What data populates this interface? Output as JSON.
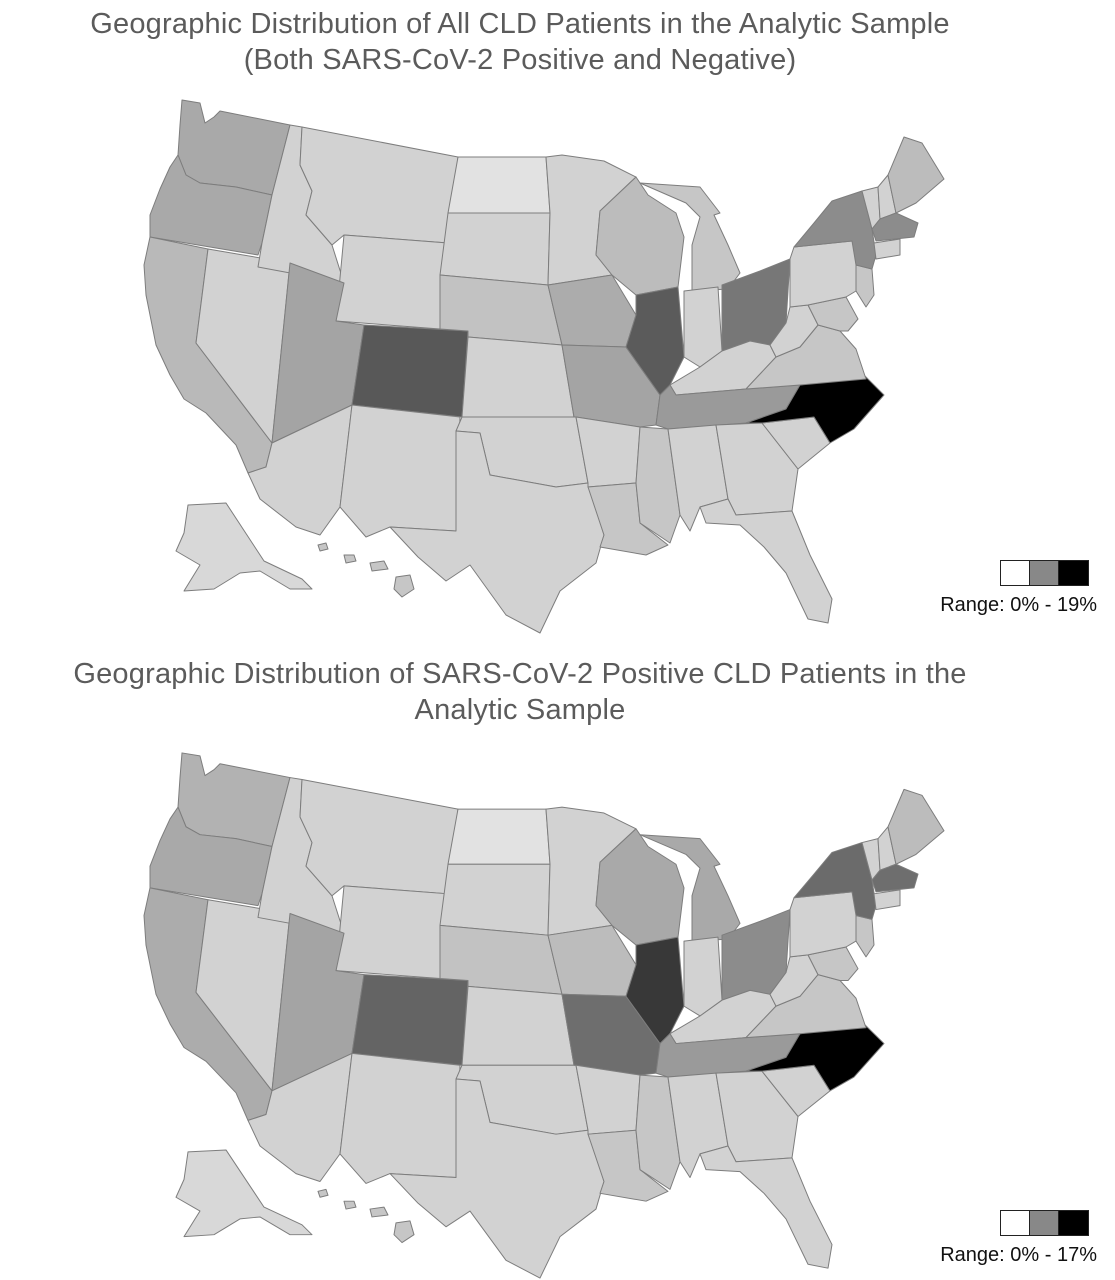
{
  "maps": [
    {
      "title_lines": [
        "Geographic Distribution of All CLD Patients in the Analytic Sample",
        "(Both SARS-CoV-2 Positive and Negative)"
      ],
      "legend": {
        "label": "Range: 0% - 19%",
        "colors": [
          "#ffffff",
          "#888888",
          "#000000"
        ]
      },
      "state_shades": {
        "WA": "#a9a9a9",
        "OR": "#a9a9a9",
        "CA": "#b9b9b9",
        "NV": "#d2d2d2",
        "ID": "#d2d2d2",
        "MT": "#d2d2d2",
        "WY": "#d2d2d2",
        "UT": "#a4a4a4",
        "CO": "#585858",
        "AZ": "#d2d2d2",
        "NM": "#d2d2d2",
        "ND": "#e2e2e2",
        "SD": "#d2d2d2",
        "NE": "#c2c2c2",
        "KS": "#d2d2d2",
        "OK": "#d2d2d2",
        "TX": "#d2d2d2",
        "MN": "#d2d2d2",
        "IA": "#acacac",
        "MO": "#a4a4a4",
        "AR": "#d2d2d2",
        "LA": "#c6c6c6",
        "WI": "#bcbcbc",
        "IL": "#5b5b5b",
        "MI": "#c6c6c6",
        "IN": "#d2d2d2",
        "OH": "#777777",
        "KY": "#d2d2d2",
        "TN": "#9a9a9a",
        "MS": "#c6c6c6",
        "AL": "#d2d2d2",
        "GA": "#d2d2d2",
        "FL": "#d2d2d2",
        "SC": "#d2d2d2",
        "NC": "#000000",
        "VA": "#c6c6c6",
        "WV": "#d2d2d2",
        "PA": "#d2d2d2",
        "NY": "#8c8c8c",
        "VT": "#d2d2d2",
        "NH": "#d2d2d2",
        "ME": "#bcbcbc",
        "MA": "#8c8c8c",
        "CT": "#d2d2d2",
        "NJ": "#c6c6c6",
        "MD": "#c6c6c6",
        "AK": "#d8d8d8",
        "HI": "#c6c6c6"
      }
    },
    {
      "title_lines": [
        "Geographic Distribution of SARS-CoV-2 Positive CLD Patients in the",
        "Analytic Sample"
      ],
      "legend": {
        "label": "Range: 0% - 17%",
        "colors": [
          "#ffffff",
          "#888888",
          "#000000"
        ]
      },
      "state_shades": {
        "WA": "#b2b2b2",
        "OR": "#a9a9a9",
        "CA": "#acacac",
        "NV": "#d2d2d2",
        "ID": "#d2d2d2",
        "MT": "#d2d2d2",
        "WY": "#d2d2d2",
        "UT": "#a4a4a4",
        "CO": "#646464",
        "AZ": "#d2d2d2",
        "NM": "#d2d2d2",
        "ND": "#e2e2e2",
        "SD": "#d2d2d2",
        "NE": "#c2c2c2",
        "KS": "#d2d2d2",
        "OK": "#d2d2d2",
        "TX": "#d2d2d2",
        "MN": "#d2d2d2",
        "IA": "#bcbcbc",
        "MO": "#6e6e6e",
        "AR": "#d2d2d2",
        "LA": "#c6c6c6",
        "WI": "#a9a9a9",
        "IL": "#383838",
        "MI": "#a9a9a9",
        "IN": "#d2d2d2",
        "OH": "#8c8c8c",
        "KY": "#d2d2d2",
        "TN": "#9a9a9a",
        "MS": "#c6c6c6",
        "AL": "#d2d2d2",
        "GA": "#d2d2d2",
        "FL": "#d2d2d2",
        "SC": "#d2d2d2",
        "NC": "#000000",
        "VA": "#c6c6c6",
        "WV": "#d2d2d2",
        "PA": "#d2d2d2",
        "NY": "#6b6b6b",
        "VT": "#d2d2d2",
        "NH": "#d2d2d2",
        "ME": "#bcbcbc",
        "MA": "#6e6e6e",
        "CT": "#d2d2d2",
        "NJ": "#c6c6c6",
        "MD": "#c6c6c6",
        "AK": "#d8d8d8",
        "HI": "#c6c6c6"
      }
    }
  ]
}
